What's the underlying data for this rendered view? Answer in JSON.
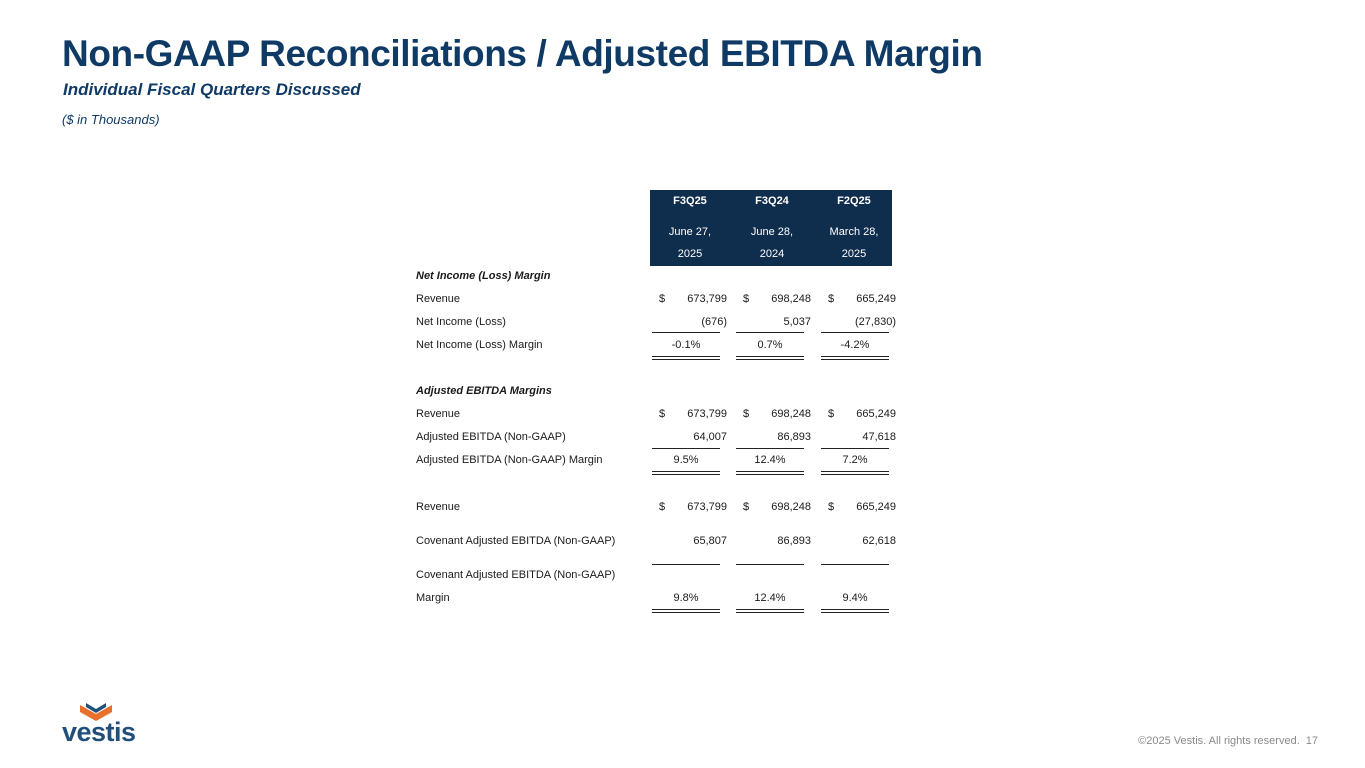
{
  "header": {
    "title": "Non-GAAP Reconciliations / Adjusted EBITDA Margin",
    "subtitle": "Individual Fiscal Quarters Discussed",
    "units": "($ in Thousands)"
  },
  "table": {
    "columns": [
      {
        "period": "F3Q25",
        "date_line1": "June 27,",
        "date_line2": "2025"
      },
      {
        "period": "F3Q24",
        "date_line1": "June 28,",
        "date_line2": "2024"
      },
      {
        "period": "F2Q25",
        "date_line1": "March 28,",
        "date_line2": "2025"
      }
    ],
    "currency_symbol": "$",
    "net_income_section": {
      "heading": "Net Income (Loss) Margin",
      "rows": [
        {
          "label": "Revenue",
          "values": [
            "673,799",
            "698,248",
            "665,249"
          ]
        },
        {
          "label": "Net Income (Loss)",
          "values": [
            "(676)",
            "5,037",
            "(27,830)"
          ]
        },
        {
          "label": "Net Income (Loss) Margin",
          "values": [
            "-0.1%",
            "0.7%",
            "-4.2%"
          ]
        }
      ]
    },
    "adjusted_ebitda_section": {
      "heading": "Adjusted EBITDA Margins",
      "rows": [
        {
          "label": "Revenue",
          "values": [
            "673,799",
            "698,248",
            "665,249"
          ]
        },
        {
          "label": "Adjusted EBITDA (Non-GAAP)",
          "values": [
            "64,007",
            "86,893",
            "47,618"
          ]
        },
        {
          "label": "Adjusted EBITDA (Non-GAAP) Margin",
          "values": [
            "9.5%",
            "12.4%",
            "7.2%"
          ]
        }
      ]
    },
    "covenant_section": {
      "rows": [
        {
          "label": "Revenue",
          "values": [
            "673,799",
            "698,248",
            "665,249"
          ]
        },
        {
          "label": "Covenant Adjusted EBITDA (Non-GAAP)",
          "values": [
            "65,807",
            "86,893",
            "62,618"
          ]
        },
        {
          "label_line1": "Covenant Adjusted EBITDA (Non-GAAP)",
          "label_line2": "Margin",
          "values": [
            "9.8%",
            "12.4%",
            "9.4%"
          ]
        }
      ]
    }
  },
  "logo": {
    "text": "vestis",
    "accent_color": "#e8702a",
    "brand_color": "#1f4f7a"
  },
  "footer": {
    "copyright": "©2025 Vestis. All rights reserved.",
    "page_number": "17"
  }
}
